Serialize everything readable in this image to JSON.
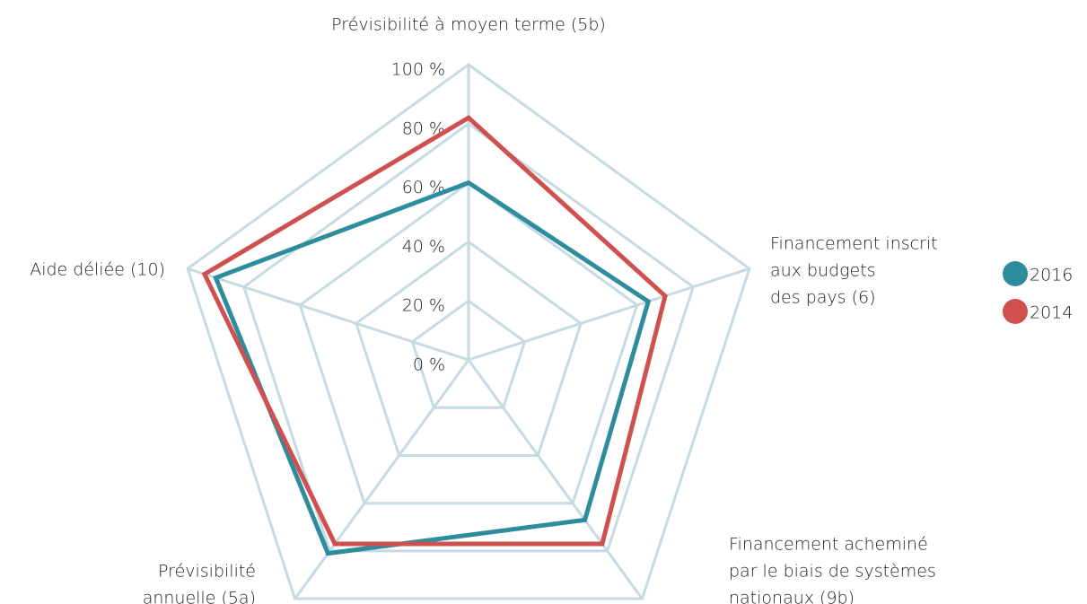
{
  "chart_data": {
    "type": "radar",
    "categories": [
      [
        "Prévisibilité à moyen terme (5b)"
      ],
      [
        "Financement inscrit",
        "aux budgets",
        "des pays (6)"
      ],
      [
        "Financement acheminé",
        "par le biais de systèmes",
        "nationaux (9b)"
      ],
      [
        "Prévisibilité",
        "annuelle (5a)"
      ],
      [
        "Aide déliée (10)"
      ]
    ],
    "series": [
      {
        "name": "2016",
        "color": "#2e8d9c",
        "values": [
          60,
          64,
          67,
          81,
          90
        ]
      },
      {
        "name": "2014",
        "color": "#d0504f",
        "values": [
          82,
          70,
          77,
          77,
          94
        ]
      }
    ],
    "ylim": [
      0,
      100
    ],
    "yticks": [
      {
        "value": 0,
        "label": "0 %"
      },
      {
        "value": 20,
        "label": "20 %"
      },
      {
        "value": 40,
        "label": "40 %"
      },
      {
        "value": 60,
        "label": "60 %"
      },
      {
        "value": 80,
        "label": "80 %"
      },
      {
        "value": 100,
        "label": "100 %"
      }
    ],
    "grid": true
  }
}
